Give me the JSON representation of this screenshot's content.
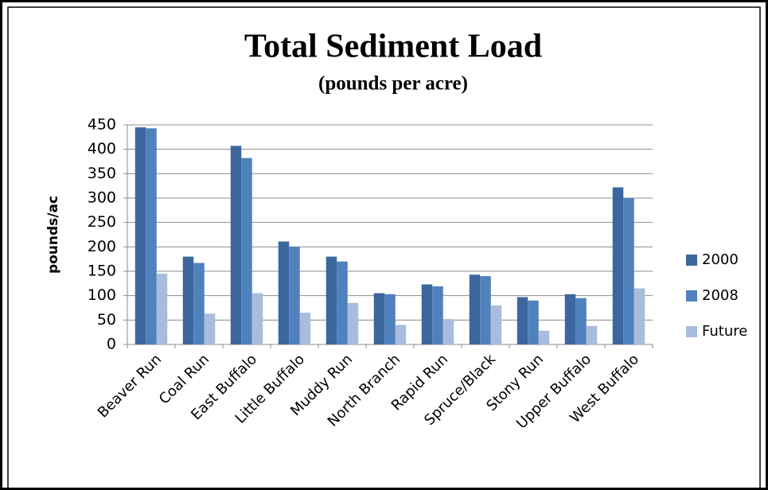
{
  "chart_data": {
    "type": "bar",
    "title": "Total Sediment Load",
    "subtitle": "(pounds per acre)",
    "y_label": "pounds/ac",
    "categories": [
      "Beaver Run",
      "Coal Run",
      "East Buffalo",
      "Little Buffalo",
      "Muddy Run",
      "North Branch",
      "Rapid Run",
      "Spruce/Black",
      "Stony Run",
      "Upper Buffalo",
      "West Buffalo"
    ],
    "series": [
      {
        "name": "2000",
        "color": "#3c679e",
        "values": [
          445,
          180,
          407,
          211,
          180,
          105,
          123,
          143,
          97,
          103,
          322
        ]
      },
      {
        "name": "2008",
        "color": "#4f81bd",
        "values": [
          443,
          167,
          382,
          200,
          170,
          103,
          119,
          140,
          90,
          95,
          300
        ]
      },
      {
        "name": "Future",
        "color": "#a9bcdc",
        "values": [
          145,
          63,
          105,
          65,
          85,
          40,
          52,
          80,
          28,
          38,
          115
        ]
      }
    ],
    "ylim": [
      0,
      450
    ],
    "yticks": [
      0,
      50,
      100,
      150,
      200,
      250,
      300,
      350,
      400,
      450
    ],
    "grid": true,
    "legend": "right"
  }
}
